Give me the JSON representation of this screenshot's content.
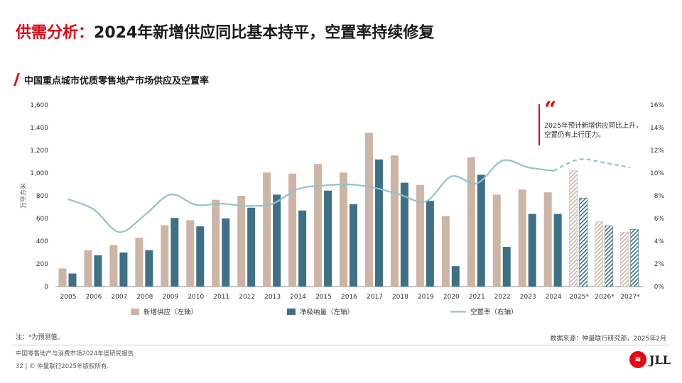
{
  "header": {
    "title_highlight": "供需分析：",
    "title_main": "2024年新增供应同比基本持平，空置率持续修复",
    "subtitle": "中国重点城市优质零售地产市场供应及空置率"
  },
  "callout": {
    "quote_mark": "“",
    "text": "2025年预计新增供应同比上升，空置仍有上行压力。"
  },
  "chart_data": {
    "type": "bar",
    "categories": [
      "2005",
      "2006",
      "2007",
      "2008",
      "2009",
      "2010",
      "2011",
      "2012",
      "2013",
      "2014",
      "2015",
      "2016",
      "2017",
      "2018",
      "2019",
      "2020",
      "2021",
      "2022",
      "2023",
      "2024",
      "2025*",
      "2026*",
      "2027*"
    ],
    "forecast_from_index": 20,
    "series": [
      {
        "name": "新增供应（左轴）",
        "type": "bar",
        "axis": "left",
        "color": "#cdb5a5",
        "values": [
          160,
          320,
          365,
          430,
          540,
          585,
          765,
          800,
          1005,
          995,
          1080,
          1005,
          1355,
          1155,
          895,
          620,
          1140,
          810,
          855,
          830,
          1020,
          570,
          480
        ]
      },
      {
        "name": "净吸纳量（左轴）",
        "type": "bar",
        "axis": "left",
        "color": "#3e7186",
        "values": [
          115,
          275,
          300,
          320,
          605,
          530,
          600,
          695,
          810,
          670,
          845,
          725,
          1120,
          915,
          755,
          180,
          985,
          350,
          640,
          640,
          780,
          535,
          505
        ]
      },
      {
        "name": "空置率（右轴）",
        "type": "line",
        "axis": "right",
        "color": "#93c1d0",
        "values": [
          7.7,
          6.8,
          4.8,
          6.3,
          8.1,
          7.2,
          7.3,
          7.1,
          7.3,
          8.6,
          8.9,
          9.0,
          8.7,
          8.1,
          7.5,
          9.7,
          9.1,
          11.1,
          10.5,
          10.2,
          11.2,
          10.9,
          10.5
        ]
      }
    ],
    "left_axis": {
      "label": "万平方米",
      "min": 0,
      "max": 1600,
      "ticks": [
        "0",
        "200",
        "400",
        "600",
        "800",
        "1,000",
        "1,200",
        "1,400",
        "1,600"
      ]
    },
    "right_axis": {
      "min": 0,
      "max": 16,
      "ticks": [
        "0%",
        "2%",
        "4%",
        "6%",
        "8%",
        "10%",
        "12%",
        "14%",
        "16%"
      ]
    },
    "grid": false,
    "legend_position": "bottom"
  },
  "footer": {
    "note": "注：*为预测值。",
    "source": "数据来源：仲量联行研究部，2025年2月",
    "report": "中国零售地产与消费市场2024年度研究报告",
    "page": "32",
    "separator": "|",
    "copyright": "© 仲量联行2025年版权所有.",
    "logo_text": "JLL"
  }
}
